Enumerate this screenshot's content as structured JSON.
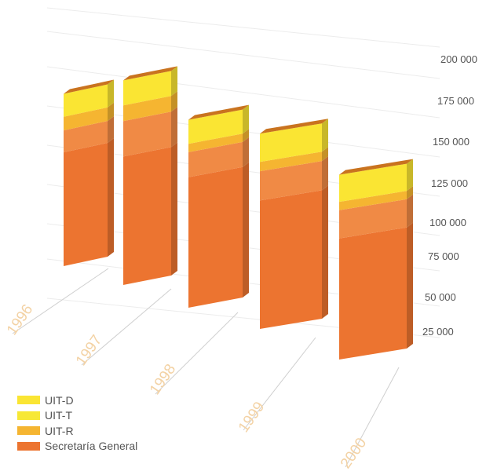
{
  "chart_data": {
    "type": "bar",
    "stacked": true,
    "categories": [
      "1996",
      "1997",
      "1998",
      "1999",
      "2000"
    ],
    "series": [
      {
        "name": "Secretaría General",
        "color": "#ec7430",
        "values": [
          109000,
          123000,
          125000,
          123000,
          116000
        ]
      },
      {
        "name": "UIT-R",
        "color": "#f08a45",
        "values": [
          21000,
          34000,
          24000,
          28000,
          27000
        ]
      },
      {
        "name": "UIT-T",
        "color": "#f5b531",
        "values": [
          13000,
          15000,
          8000,
          9000,
          8000
        ]
      },
      {
        "name": "UIT-D",
        "color": "#fae533",
        "values": [
          22000,
          24000,
          23000,
          27000,
          26000
        ]
      }
    ],
    "yticks": [
      "25 000",
      "50 000",
      "75 000",
      "100 000",
      "125 000",
      "150 000",
      "175 000",
      "200 000"
    ],
    "ylim": [
      0,
      200000
    ],
    "grid": true,
    "legend_position": "bottom-left",
    "legend": [
      "UIT-D",
      "UIT-T",
      "UIT-R",
      "Secretaría General"
    ],
    "title": "",
    "xlabel": "",
    "ylabel": ""
  }
}
